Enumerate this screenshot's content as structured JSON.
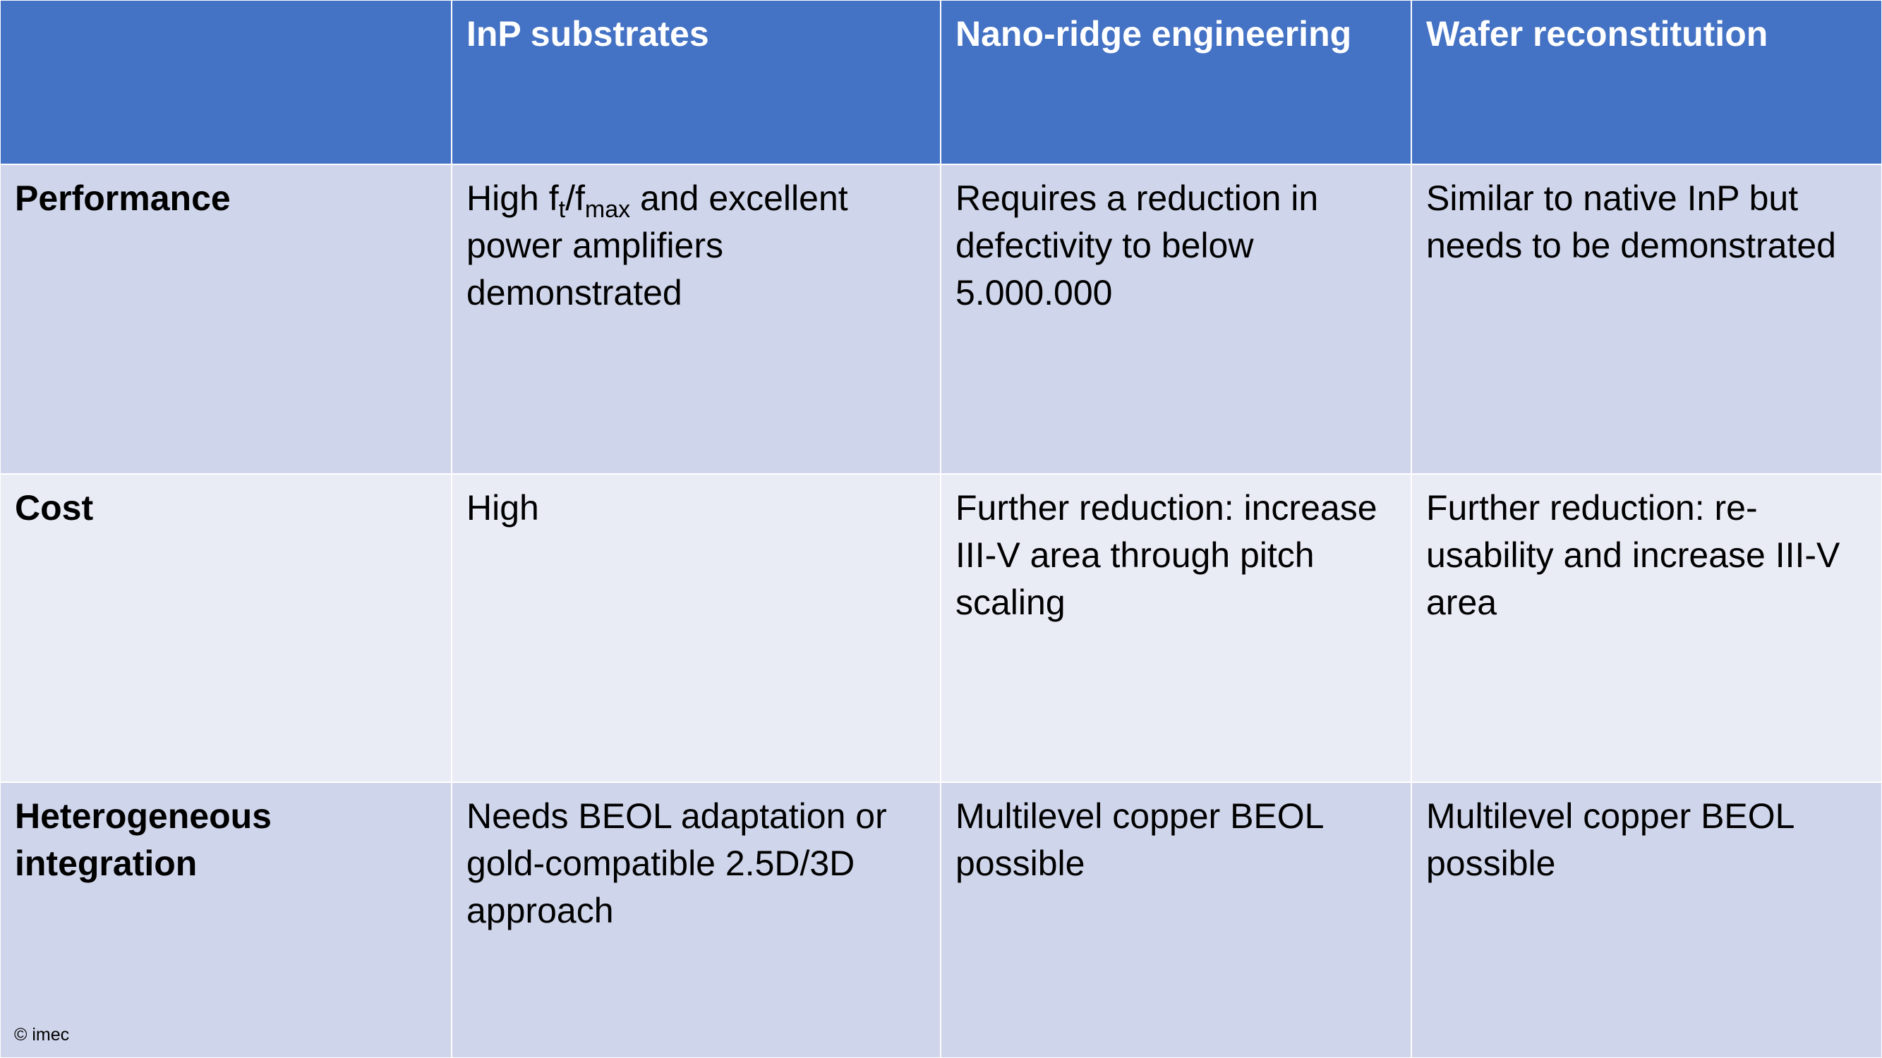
{
  "table": {
    "header": [
      "",
      "InP substrates",
      "Nano-ridge engineering",
      "Wafer reconstitution"
    ],
    "rows": [
      {
        "label": "Performance",
        "cells": [
          [
            "High f",
            {
              "sub": "t"
            },
            "/f",
            {
              "sub": "max"
            },
            " and excellent power amplifiers demonstrated"
          ],
          "Requires a reduction in defectivity to below 5.000.000",
          "Similar to native InP but needs to be demonstrated"
        ]
      },
      {
        "label": "Cost",
        "cells": [
          "High",
          "Further reduction: increase III-V area through pitch scaling",
          "Further reduction: re-usability and increase III-V area"
        ]
      },
      {
        "label": "Heterogeneous integration",
        "cells": [
          "Needs BEOL adaptation or gold-compatible 2.5D/3D approach",
          "Multilevel copper BEOL possible",
          "Multilevel copper BEOL possible"
        ]
      }
    ]
  },
  "footer": "© imec"
}
